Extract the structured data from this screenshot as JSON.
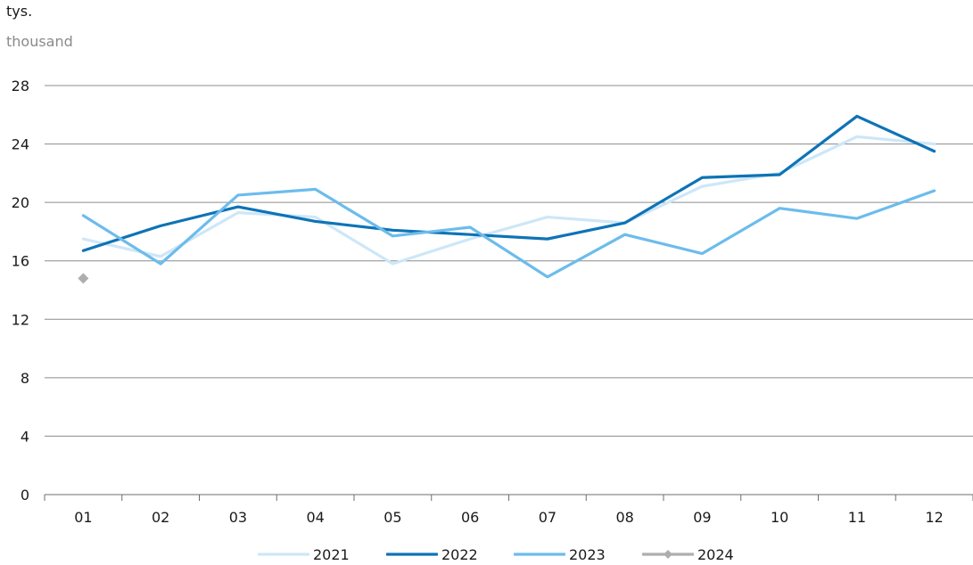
{
  "chart_data": {
    "type": "line",
    "unit_label_pl": "tys.",
    "unit_label_en": "thousand",
    "categories": [
      "01",
      "02",
      "03",
      "04",
      "05",
      "06",
      "07",
      "08",
      "09",
      "10",
      "11",
      "12"
    ],
    "ylim": [
      0,
      28
    ],
    "yticks": [
      0,
      4,
      8,
      12,
      16,
      20,
      24,
      28
    ],
    "grid": true,
    "legend_position": "bottom",
    "series": [
      {
        "name": "2021",
        "color": "#cde7f8",
        "marker": "none",
        "values": [
          17.5,
          16.3,
          19.3,
          19.0,
          15.8,
          17.5,
          19.0,
          18.6,
          21.1,
          22.0,
          24.5,
          24.0
        ]
      },
      {
        "name": "2022",
        "color": "#0e73b6",
        "marker": "none",
        "values": [
          16.7,
          18.4,
          19.7,
          18.7,
          18.1,
          17.8,
          17.5,
          18.6,
          21.7,
          21.9,
          25.9,
          23.5
        ]
      },
      {
        "name": "2023",
        "color": "#6cbcec",
        "marker": "none",
        "values": [
          19.1,
          15.8,
          20.5,
          20.9,
          17.7,
          18.3,
          14.9,
          17.8,
          16.5,
          19.6,
          18.9,
          20.8
        ]
      },
      {
        "name": "2024",
        "color": "#aeaeae",
        "marker": "diamond",
        "values": [
          14.8,
          null,
          null,
          null,
          null,
          null,
          null,
          null,
          null,
          null,
          null,
          null
        ]
      }
    ]
  }
}
